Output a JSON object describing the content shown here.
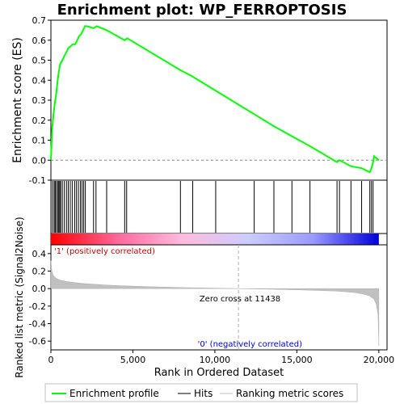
{
  "chart_data": {
    "type": "line",
    "title": "Enrichment plot: WP_FERROPTOSIS",
    "top_panel": {
      "ylabel": "Enrichment score (ES)",
      "ylim": [
        -0.1,
        0.7
      ],
      "yticks": [
        "-0.1",
        "0.0",
        "0.1",
        "0.2",
        "0.3",
        "0.4",
        "0.5",
        "0.6",
        "0.7"
      ],
      "ytick_values": [
        -0.1,
        0.0,
        0.1,
        0.2,
        0.3,
        0.4,
        0.5,
        0.6,
        0.7
      ],
      "xlim": [
        0,
        20500
      ],
      "color": "#00ff00",
      "series": [
        {
          "name": "Enrichment profile",
          "x": [
            0,
            80,
            150,
            230,
            320,
            400,
            480,
            560,
            700,
            820,
            950,
            1060,
            1200,
            1330,
            1480,
            1600,
            1720,
            1840,
            1960,
            2080,
            2200,
            2600,
            2800,
            3400,
            4500,
            4650,
            7900,
            8600,
            10000,
            12400,
            13600,
            14700,
            15800,
            17450,
            17600,
            18300,
            18950,
            19450,
            19550,
            19650,
            19700,
            20000
          ],
          "y": [
            0.0,
            0.16,
            0.22,
            0.28,
            0.33,
            0.39,
            0.44,
            0.48,
            0.5,
            0.52,
            0.54,
            0.56,
            0.57,
            0.58,
            0.58,
            0.6,
            0.62,
            0.63,
            0.65,
            0.67,
            0.67,
            0.66,
            0.67,
            0.65,
            0.6,
            0.61,
            0.45,
            0.42,
            0.35,
            0.23,
            0.17,
            0.12,
            0.07,
            -0.01,
            0.0,
            -0.03,
            -0.04,
            -0.06,
            -0.04,
            -0.01,
            0.02,
            0.0
          ]
        }
      ]
    },
    "hits": {
      "label": "Hits",
      "positions": [
        100,
        200,
        260,
        330,
        420,
        480,
        540,
        600,
        700,
        820,
        950,
        1060,
        1180,
        1300,
        1450,
        1560,
        1680,
        1800,
        1900,
        2000,
        2100,
        2600,
        2750,
        3400,
        4500,
        4620,
        7900,
        8650,
        10050,
        12400,
        13600,
        14700,
        15800,
        17450,
        17600,
        18300,
        18950,
        19450,
        19550,
        19650
      ]
    },
    "colorbar": {
      "stops": [
        "#ff0000",
        "#ff6699",
        "#ffbbdd",
        "#ccccff",
        "#9999ff",
        "#0000dd"
      ],
      "pos_label": "'1' (positively correlated)",
      "neg_label": "'0' (negatively correlated)"
    },
    "bottom_panel": {
      "ylabel": "Ranked list metric (Signal2Noise)",
      "ylim": [
        -0.7,
        0.5
      ],
      "yticks": [
        "-0.6",
        "-0.4",
        "-0.2",
        "0.0",
        "0.2",
        "0.4"
      ],
      "ytick_values": [
        -0.6,
        -0.4,
        -0.2,
        0.0,
        0.2,
        0.4
      ],
      "metric_x": [
        0,
        60,
        150,
        300,
        600,
        1000,
        1500,
        2000,
        3000,
        4000,
        6000,
        8000,
        10000,
        11438,
        13000,
        15000,
        16500,
        17500,
        18500,
        19000,
        19400,
        19700,
        19850,
        19950,
        20000
      ],
      "metric_y": [
        0.32,
        0.2,
        0.15,
        0.12,
        0.095,
        0.08,
        0.068,
        0.058,
        0.045,
        0.035,
        0.022,
        0.012,
        0.005,
        0.0,
        -0.006,
        -0.014,
        -0.022,
        -0.03,
        -0.045,
        -0.06,
        -0.08,
        -0.12,
        -0.18,
        -0.3,
        -0.65
      ],
      "zero_cross_label": "Zero cross at 11438",
      "zero_cross": 11438
    },
    "xlabel": "Rank in Ordered Dataset",
    "xticks": [
      "0",
      "5,000",
      "10,000",
      "15,000",
      "20,000"
    ],
    "xtick_values": [
      0,
      5000,
      10000,
      15000,
      20000
    ],
    "legend": {
      "placement": "bottom",
      "items": [
        {
          "label": "Enrichment profile",
          "color": "#00ff00"
        },
        {
          "label": "Hits",
          "color": "#000000"
        },
        {
          "label": "Ranking metric scores",
          "color": "#c0c0c0"
        }
      ]
    }
  }
}
